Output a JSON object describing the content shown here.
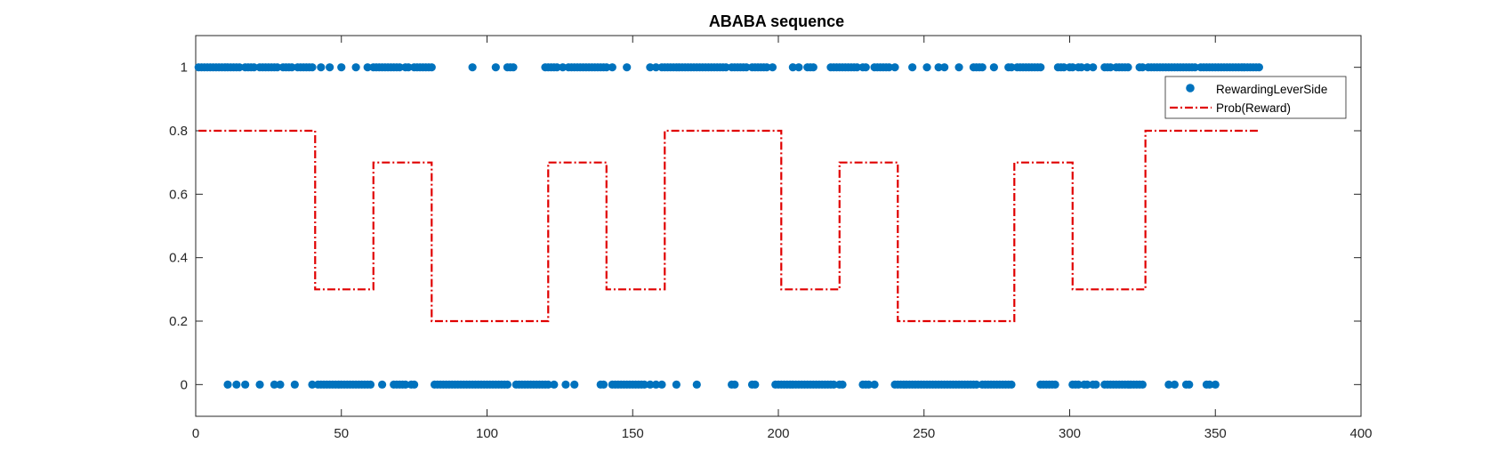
{
  "chart_data": {
    "type": "line",
    "title": "ABABA sequence",
    "xlabel": "",
    "ylabel": "",
    "xlim": [
      0,
      400
    ],
    "ylim": [
      -0.1,
      1.1
    ],
    "x_ticks": [
      0,
      50,
      100,
      150,
      200,
      250,
      300,
      350,
      400
    ],
    "y_ticks": [
      0,
      0.2,
      0.4,
      0.6,
      0.8,
      1
    ],
    "x_tick_labels": [
      "0",
      "50",
      "100",
      "150",
      "200",
      "250",
      "300",
      "350",
      "400"
    ],
    "y_tick_labels": [
      "0",
      "0.2",
      "0.4",
      "0.6",
      "0.8",
      "1"
    ],
    "grid": false,
    "legend_position": "top-right",
    "series": [
      {
        "name": "RewardingLeverSide",
        "kind": "scatter",
        "color": "#0072BD",
        "points_y1_x": [
          1,
          2,
          3,
          4,
          5,
          6,
          7,
          8,
          9,
          10,
          11,
          12,
          13,
          14,
          15,
          17,
          18,
          19,
          20,
          22,
          23,
          24,
          25,
          26,
          27,
          28,
          30,
          31,
          32,
          33,
          35,
          36,
          37,
          38,
          39,
          40,
          43,
          46,
          50,
          55,
          59,
          61,
          62,
          63,
          64,
          65,
          66,
          67,
          68,
          69,
          70,
          72,
          73,
          75,
          76,
          77,
          78,
          79,
          80,
          81,
          95,
          103,
          107,
          108,
          109,
          120,
          121,
          122,
          123,
          124,
          126,
          128,
          129,
          130,
          131,
          132,
          133,
          134,
          135,
          136,
          137,
          138,
          139,
          140,
          141,
          143,
          148,
          156,
          158,
          160,
          161,
          162,
          163,
          164,
          165,
          166,
          167,
          168,
          169,
          170,
          171,
          172,
          173,
          174,
          175,
          176,
          177,
          178,
          179,
          180,
          181,
          182,
          184,
          185,
          186,
          187,
          188,
          189,
          191,
          192,
          193,
          194,
          195,
          196,
          198,
          205,
          207,
          210,
          211,
          212,
          218,
          219,
          220,
          221,
          222,
          223,
          224,
          225,
          226,
          227,
          229,
          230,
          233,
          234,
          235,
          236,
          237,
          238,
          240,
          246,
          251,
          255,
          257,
          262,
          267,
          268,
          269,
          270,
          274,
          280,
          279,
          282,
          283,
          284,
          285,
          286,
          287,
          288,
          289,
          290,
          296,
          297,
          298,
          300,
          301,
          303,
          304,
          306,
          308,
          312,
          313,
          314,
          316,
          317,
          318,
          319,
          320,
          325,
          330,
          334,
          324,
          327,
          328,
          329,
          331,
          332,
          333,
          335,
          336,
          337,
          338,
          339,
          340,
          341,
          342,
          343,
          345,
          346,
          347,
          348,
          349,
          350,
          351,
          352,
          353,
          354,
          355,
          356,
          357,
          358,
          359,
          360,
          361,
          362,
          363,
          364,
          365
        ],
        "points_y0_x": [
          11,
          14,
          17,
          22,
          27,
          29,
          34,
          40,
          42,
          43,
          44,
          45,
          46,
          47,
          48,
          49,
          50,
          51,
          52,
          53,
          54,
          55,
          56,
          57,
          58,
          59,
          60,
          64,
          68,
          69,
          70,
          71,
          72,
          74,
          75,
          82,
          83,
          84,
          85,
          86,
          87,
          88,
          89,
          90,
          91,
          92,
          93,
          94,
          95,
          96,
          97,
          98,
          99,
          100,
          101,
          102,
          103,
          104,
          105,
          106,
          107,
          110,
          111,
          112,
          113,
          114,
          115,
          116,
          117,
          118,
          119,
          120,
          121,
          123,
          127,
          130,
          139,
          140,
          143,
          144,
          145,
          146,
          147,
          148,
          149,
          150,
          151,
          152,
          153,
          154,
          156,
          158,
          160,
          165,
          172,
          184,
          185,
          191,
          192,
          199,
          200,
          201,
          202,
          203,
          204,
          205,
          206,
          207,
          208,
          209,
          210,
          211,
          212,
          213,
          214,
          215,
          216,
          217,
          218,
          219,
          221,
          222,
          229,
          230,
          231,
          233,
          240,
          241,
          242,
          243,
          244,
          245,
          246,
          247,
          248,
          249,
          250,
          251,
          252,
          253,
          254,
          255,
          256,
          257,
          258,
          259,
          260,
          261,
          262,
          263,
          264,
          265,
          266,
          267,
          268,
          270,
          271,
          272,
          273,
          274,
          275,
          276,
          277,
          278,
          279,
          280,
          290,
          291,
          292,
          293,
          294,
          295,
          301,
          302,
          303,
          305,
          306,
          308,
          309,
          312,
          313,
          314,
          315,
          316,
          317,
          318,
          319,
          320,
          321,
          322,
          323,
          324,
          325,
          334,
          336,
          340,
          341,
          347,
          348,
          350
        ]
      },
      {
        "name": "Prob(Reward)",
        "kind": "step",
        "color": "#E00000",
        "step_x": [
          1,
          41,
          61,
          81,
          121,
          141,
          161,
          201,
          221,
          241,
          281,
          301,
          326,
          365
        ],
        "step_y": [
          0.8,
          0.3,
          0.7,
          0.2,
          0.7,
          0.3,
          0.8,
          0.3,
          0.7,
          0.2,
          0.7,
          0.3,
          0.8,
          0.8
        ]
      }
    ]
  }
}
